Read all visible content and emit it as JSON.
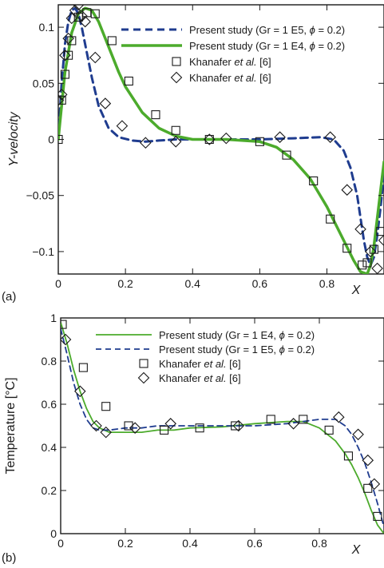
{
  "chart_data": [
    {
      "panel_label": "(a)",
      "type": "line",
      "xlabel": "X",
      "ylabel": "Y-velocity",
      "xlim": [
        0,
        0.97
      ],
      "ylim": [
        -0.12,
        0.12
      ],
      "xticks": [
        0,
        0.2,
        0.4,
        0.6,
        0.8
      ],
      "xtick_labels": [
        "0",
        "0.2",
        "0.4",
        "0.6",
        "0.8"
      ],
      "yticks": [
        -0.1,
        -0.05,
        0,
        0.05,
        0.1
      ],
      "ytick_labels": [
        "−0.1",
        "−0.05",
        "0",
        "0.05",
        "0.1"
      ],
      "legend_placement": "top-right",
      "series": [
        {
          "name": "Present study (Gr = 1 E5, ϕ = 0.2)",
          "style": "dashed",
          "color": "#1f3c8f",
          "x": [
            0,
            0.01,
            0.02,
            0.03,
            0.04,
            0.05,
            0.06,
            0.07,
            0.08,
            0.1,
            0.12,
            0.15,
            0.18,
            0.22,
            0.26,
            0.3,
            0.35,
            0.4,
            0.5,
            0.6,
            0.7,
            0.78,
            0.82,
            0.85,
            0.87,
            0.89,
            0.9,
            0.91,
            0.92,
            0.93,
            0.94,
            0.95,
            0.96,
            0.97
          ],
          "y": [
            0,
            0.05,
            0.085,
            0.105,
            0.115,
            0.117,
            0.112,
            0.1,
            0.085,
            0.055,
            0.03,
            0.01,
            0.002,
            -0.001,
            -0.002,
            -0.001,
            0,
            0,
            0,
            0,
            0.001,
            0.002,
            0,
            -0.01,
            -0.025,
            -0.05,
            -0.07,
            -0.09,
            -0.105,
            -0.112,
            -0.105,
            -0.085,
            -0.06,
            -0.03
          ]
        },
        {
          "name": "Present study (Gr = 1 E4, ϕ = 0.2)",
          "style": "solid",
          "color": "#4cab2c",
          "x": [
            0,
            0.02,
            0.04,
            0.06,
            0.08,
            0.1,
            0.12,
            0.14,
            0.16,
            0.18,
            0.2,
            0.25,
            0.3,
            0.35,
            0.4,
            0.5,
            0.6,
            0.65,
            0.7,
            0.75,
            0.8,
            0.85,
            0.88,
            0.9,
            0.92,
            0.93,
            0.94,
            0.95,
            0.96,
            0.97
          ],
          "y": [
            0,
            0.06,
            0.095,
            0.112,
            0.117,
            0.115,
            0.105,
            0.09,
            0.075,
            0.06,
            0.047,
            0.024,
            0.01,
            0.003,
            0,
            0,
            -0.002,
            -0.007,
            -0.018,
            -0.035,
            -0.06,
            -0.09,
            -0.108,
            -0.118,
            -0.12,
            -0.112,
            -0.095,
            -0.07,
            -0.045,
            -0.02
          ]
        },
        {
          "name": "Khanafer et al. [6]",
          "style": "marker",
          "marker": "square",
          "x": [
            0,
            0.01,
            0.02,
            0.03,
            0.04,
            0.06,
            0.085,
            0.11,
            0.16,
            0.21,
            0.29,
            0.35,
            0.45,
            0.6,
            0.68,
            0.76,
            0.81,
            0.86,
            0.905,
            0.92,
            0.94,
            0.96
          ],
          "y": [
            0,
            0.035,
            0.058,
            0.075,
            0.088,
            0.109,
            0.113,
            0.112,
            0.088,
            0.052,
            0.022,
            0.008,
            0,
            -0.002,
            -0.014,
            -0.037,
            -0.071,
            -0.097,
            -0.112,
            -0.11,
            -0.098,
            -0.082
          ]
        },
        {
          "name": "Khanafer et al. [6]",
          "style": "marker",
          "marker": "diamond",
          "x": [
            0,
            0.01,
            0.02,
            0.03,
            0.04,
            0.05,
            0.06,
            0.07,
            0.08,
            0.11,
            0.14,
            0.19,
            0.26,
            0.35,
            0.45,
            0.5,
            0.66,
            0.81,
            0.86,
            0.9,
            0.93,
            0.95,
            0.97
          ],
          "y": [
            0.035,
            0.04,
            0.075,
            0.09,
            0.108,
            0.115,
            0.12,
            0.11,
            0.105,
            0.073,
            0.032,
            0.012,
            -0.003,
            -0.002,
            0,
            0.001,
            0.002,
            0.002,
            -0.045,
            -0.08,
            -0.1,
            -0.115,
            -0.09
          ]
        }
      ]
    },
    {
      "panel_label": "(b)",
      "type": "line",
      "xlabel": "X",
      "ylabel": "Temperature [°C]",
      "xlim": [
        0,
        1
      ],
      "ylim": [
        0,
        1
      ],
      "xticks": [
        0,
        0.2,
        0.4,
        0.6,
        0.8
      ],
      "xtick_labels": [
        "0",
        "0.2",
        "0.4",
        "0.6",
        "0.8"
      ],
      "yticks": [
        0,
        0.2,
        0.4,
        0.6,
        0.8,
        1
      ],
      "ytick_labels": [
        "0",
        "0.2",
        "0.4",
        "0.6",
        "0.8",
        "1"
      ],
      "legend_placement": "top-right",
      "series": [
        {
          "name": "Present study (Gr = 1 E4, ϕ = 0.2)",
          "style": "solid",
          "color": "#4cab2c",
          "x": [
            0,
            0.02,
            0.04,
            0.06,
            0.08,
            0.1,
            0.12,
            0.15,
            0.2,
            0.25,
            0.3,
            0.35,
            0.4,
            0.5,
            0.6,
            0.7,
            0.75,
            0.8,
            0.85,
            0.88,
            0.9,
            0.92,
            0.94,
            0.96,
            0.98,
            1.0
          ],
          "y": [
            0.98,
            0.88,
            0.76,
            0.66,
            0.58,
            0.52,
            0.49,
            0.47,
            0.47,
            0.47,
            0.48,
            0.48,
            0.49,
            0.495,
            0.51,
            0.52,
            0.52,
            0.49,
            0.43,
            0.37,
            0.32,
            0.26,
            0.19,
            0.11,
            0.04,
            0
          ]
        },
        {
          "name": "Present study (Gr = 1 E5, ϕ = 0.2)",
          "style": "dashed",
          "color": "#1f3c8f",
          "x": [
            0,
            0.02,
            0.04,
            0.06,
            0.08,
            0.1,
            0.12,
            0.15,
            0.2,
            0.25,
            0.3,
            0.4,
            0.5,
            0.6,
            0.7,
            0.8,
            0.85,
            0.88,
            0.9,
            0.92,
            0.94,
            0.96,
            0.98,
            1.0
          ],
          "y": [
            0.95,
            0.83,
            0.7,
            0.6,
            0.53,
            0.49,
            0.48,
            0.48,
            0.49,
            0.49,
            0.5,
            0.5,
            0.5,
            0.5,
            0.51,
            0.53,
            0.53,
            0.5,
            0.46,
            0.4,
            0.33,
            0.24,
            0.14,
            0.03
          ]
        },
        {
          "name": "Khanafer et al. [6]",
          "style": "marker",
          "marker": "square",
          "x": [
            0.005,
            0.07,
            0.14,
            0.21,
            0.32,
            0.43,
            0.54,
            0.65,
            0.75,
            0.83,
            0.89,
            0.95,
            0.98
          ],
          "y": [
            0.97,
            0.77,
            0.59,
            0.5,
            0.48,
            0.49,
            0.5,
            0.53,
            0.53,
            0.48,
            0.36,
            0.21,
            0.08
          ]
        },
        {
          "name": "Khanafer et al. [6]",
          "style": "marker",
          "marker": "diamond",
          "x": [
            0.015,
            0.06,
            0.11,
            0.14,
            0.23,
            0.34,
            0.55,
            0.72,
            0.86,
            0.92,
            0.95,
            0.97
          ],
          "y": [
            0.9,
            0.66,
            0.5,
            0.47,
            0.49,
            0.51,
            0.5,
            0.51,
            0.54,
            0.46,
            0.34,
            0.23
          ]
        }
      ]
    }
  ]
}
